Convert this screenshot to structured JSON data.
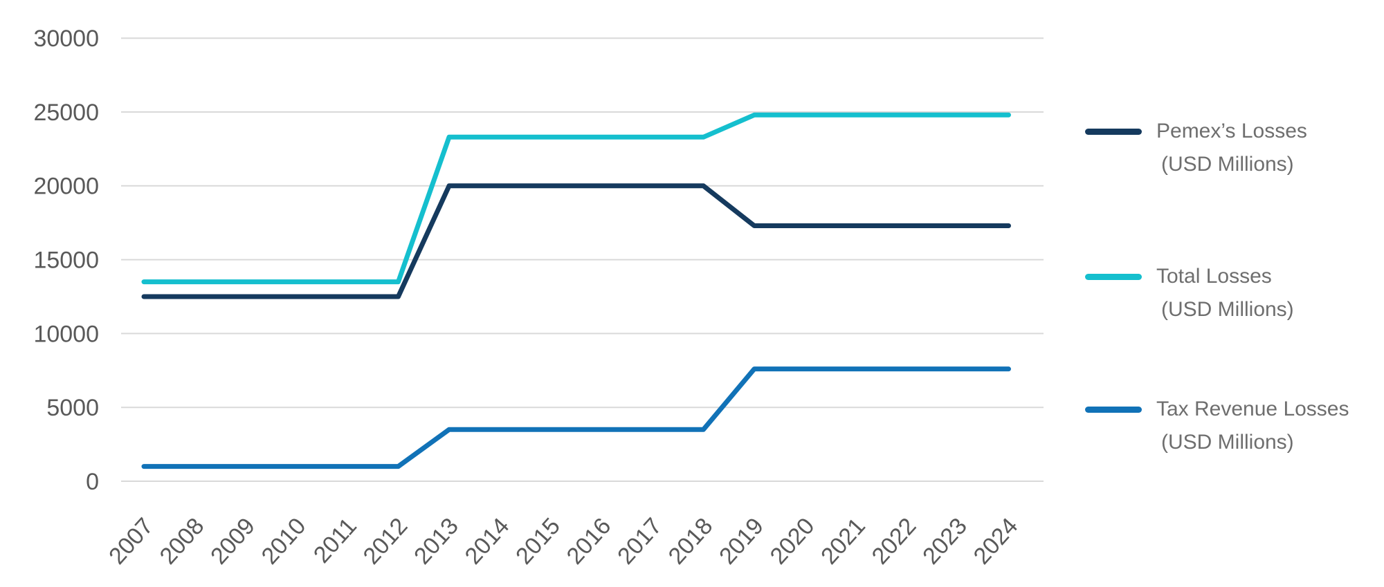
{
  "chart_data": {
    "type": "line",
    "title": "",
    "xlabel": "",
    "ylabel": "",
    "x": [
      "2007",
      "2008",
      "2009",
      "2010",
      "2011",
      "2012",
      "2013",
      "2014",
      "2015",
      "2016",
      "2017",
      "2018",
      "2019",
      "2020",
      "2021",
      "2022",
      "2023",
      "2024"
    ],
    "series": [
      {
        "id": "pemex-losses",
        "name": "Pemex’s Losses (USD Millions)",
        "color": "#153a5e",
        "values": [
          12500,
          12500,
          12500,
          12500,
          12500,
          12500,
          20000,
          20000,
          20000,
          20000,
          20000,
          20000,
          17300,
          17300,
          17300,
          17300,
          17300,
          17300
        ]
      },
      {
        "id": "total-losses",
        "name": "Total Losses (USD Millions)",
        "color": "#15bfce",
        "values": [
          13500,
          13500,
          13500,
          13500,
          13500,
          13500,
          23300,
          23300,
          23300,
          23300,
          23300,
          23300,
          24800,
          24800,
          24800,
          24800,
          24800,
          24800
        ]
      },
      {
        "id": "tax-revenue-losses",
        "name": "Tax Revenue Losses (USD Millions)",
        "color": "#1172b7",
        "values": [
          1000,
          1000,
          1000,
          1000,
          1000,
          1000,
          3500,
          3500,
          3500,
          3500,
          3500,
          3500,
          7600,
          7600,
          7600,
          7600,
          7600,
          7600
        ]
      }
    ],
    "y_ticks": [
      30000,
      25000,
      20000,
      15000,
      10000,
      5000,
      0
    ],
    "ylim": [
      0,
      30000
    ],
    "grid": "horizontal",
    "grid_color": "#d9d9d9",
    "tick_label_color": "#595959",
    "legend_position": "right"
  },
  "legend": {
    "text_color": "#6e6e6e",
    "items": [
      {
        "line1": "Pemex’s Losses",
        "line2": "(USD Millions)"
      },
      {
        "line1": "Total Losses",
        "line2": "(USD Millions)"
      },
      {
        "line1": "Tax Revenue Losses",
        "line2": "(USD Millions)"
      }
    ]
  }
}
